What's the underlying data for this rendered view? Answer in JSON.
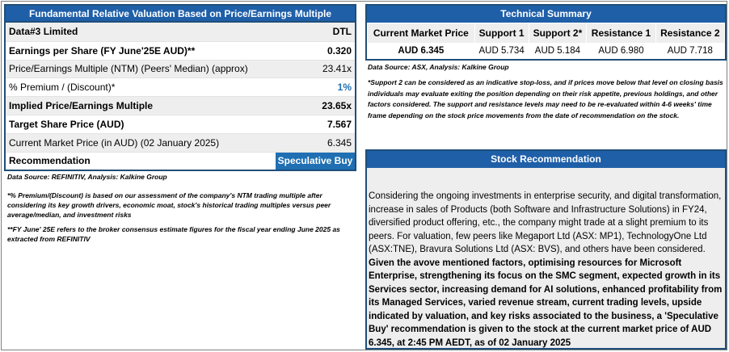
{
  "valuation": {
    "header": "Fundamental Relative Valuation Based on Price/Earnings Multiple",
    "company_label": "Data#3 Limited",
    "ticker": "DTL",
    "rows": [
      {
        "label": "Earnings per Share (FY June'25E AUD)**",
        "value": "0.320"
      },
      {
        "label": "Price/Earnings Multiple (NTM)  (Peers' Median) (approx)",
        "value": "23.41x"
      },
      {
        "label": "% Premium / (Discount)*",
        "value": "1%"
      },
      {
        "label": "Implied Price/Earnings Multiple",
        "value": "23.65x"
      },
      {
        "label": "Target Share Price (AUD)",
        "value": "7.567"
      },
      {
        "label": "Current Market Price (in AUD) (02 January 2025)",
        "value": "6.345"
      }
    ],
    "recommendation_label": "Recommendation",
    "recommendation_value": "Speculative Buy",
    "data_source": "Data Source: REFINITIV, Analysis: Kalkine Group",
    "footnote_1": "*% Premium/(Discount) is based on our assessment of the company's NTM trading multiple after considering its key growth drivers, economic moat, stock's historical trading multiples versus peer average/median, and investment risks",
    "footnote_2": "**FY June' 25E refers to the broker consensus estimate figures for the fiscal year ending June 2025  as extracted from REFINITIV"
  },
  "technical": {
    "header": "Technical Summary",
    "columns": [
      "Current Market Price",
      "Support 1",
      "Support 2*",
      "Resistance 1",
      "Resistance 2"
    ],
    "values": [
      "AUD 6.345",
      "AUD 5.734",
      "AUD 5.184",
      "AUD 6.980",
      "AUD 7.718"
    ],
    "data_source": "Data Source: ASX, Analysis: Kalkine Group",
    "note": "*Support 2 can be considered as an indicative stop-loss, and if prices move below that level on closing basis individuals may evaluate exiting the position depending on their risk appetite, previous holdings, and other factors considered. The support and resistance levels may need to be re-evaluated within 4-6 weeks' time frame depending on the stock price movements from the date of recommendation on the stock."
  },
  "stock_recommendation": {
    "header": "Stock Recommendation",
    "text_plain": "Considering the ongoing investments in enterprise security, and digital transformation, increase in sales of Products (both Software and Infrastructure Solutions) in FY24, diversified product offering, etc., the company might trade at a slight premium to its peers. For valuation, few peers like Megaport Ltd (ASX: MP1), TechnologyOne Ltd (ASX:TNE), Bravura Solutions Ltd (ASX: BVS), and others have been considered. ",
    "text_bold": "Given the avove mentioned factors, optimising resources for Microsoft Enterprise, strengthening its focus on the SMC segment, expected growth in its Services sector, increasing demand for AI solutions, enhanced profitability from its Managed Services, varied revenue stream, current trading levels, upside indicated by valuation, and key risks associated to the business, a 'Speculative Buy' recommendation is given to the stock at the current market price of AUD 6.345, at 2:45 PM AEDT, as of 02 January 2025"
  },
  "colors": {
    "header_blue": "#1f5fa8",
    "border_blue": "#1f4e79",
    "accent_blue": "#1f6fb2",
    "row_grey": "#eeeeee"
  }
}
